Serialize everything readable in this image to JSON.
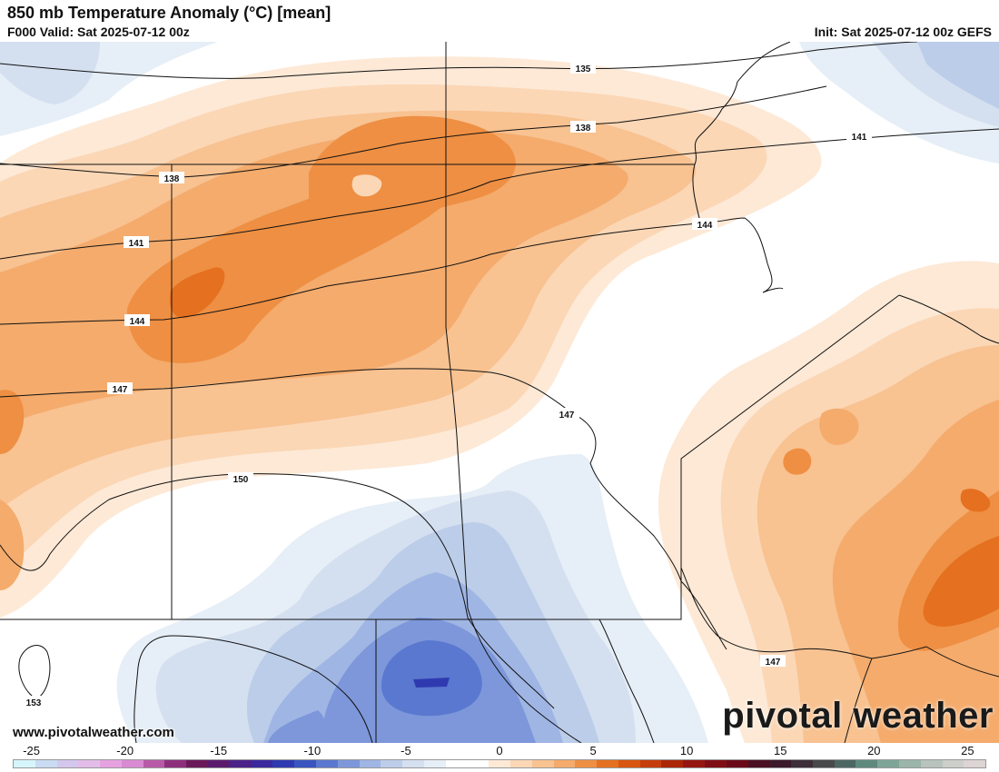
{
  "header": {
    "title": "850 mb Temperature Anomaly (°C) [mean]",
    "valid": "F000 Valid: Sat 2025-07-12 00z",
    "init": "Init: Sat 2025-07-12 00z GEFS"
  },
  "watermark": {
    "website": "www.pivotalweather.com",
    "brand": "pivotal weather"
  },
  "contours": {
    "c135": "135",
    "c138a": "138",
    "c138b": "138",
    "c141a": "141",
    "c141b": "141",
    "c144a": "144",
    "c144b": "144",
    "c147a": "147",
    "c147b": "147",
    "c147c": "147",
    "c150": "150",
    "c153": "153"
  },
  "colorbar": {
    "labels": [
      "-25",
      "-20",
      "-15",
      "-10",
      "-5",
      "0",
      "5",
      "10",
      "15",
      "20",
      "25"
    ],
    "min": -26,
    "max": 26,
    "colors": [
      "#d6f5fb",
      "#c9dcf3",
      "#d4c7ee",
      "#e2bde8",
      "#e6a2e0",
      "#d98ad2",
      "#b85aa8",
      "#8e2f7c",
      "#6a1a5a",
      "#5a1b6e",
      "#4b2288",
      "#3a2a9e",
      "#2f3ab0",
      "#3a55c0",
      "#5a78cf",
      "#7d97da",
      "#9fb5e4",
      "#bccde9",
      "#d4e0f0",
      "#e6eef7",
      "#ffffff",
      "#ffffff",
      "#fde9d6",
      "#fbd7b6",
      "#f8c291",
      "#f4ab6c",
      "#ee8f43",
      "#e5701f",
      "#d85610",
      "#c53d0a",
      "#ab2607",
      "#951610",
      "#7e0e14",
      "#6a0a18",
      "#4a0f22",
      "#3b1a2c",
      "#3d2e3a",
      "#474a4a",
      "#4c6663",
      "#5e8a7e",
      "#7ea597",
      "#9bb5ab",
      "#b7c3bc",
      "#cdcfca",
      "#ddd5d3"
    ]
  }
}
